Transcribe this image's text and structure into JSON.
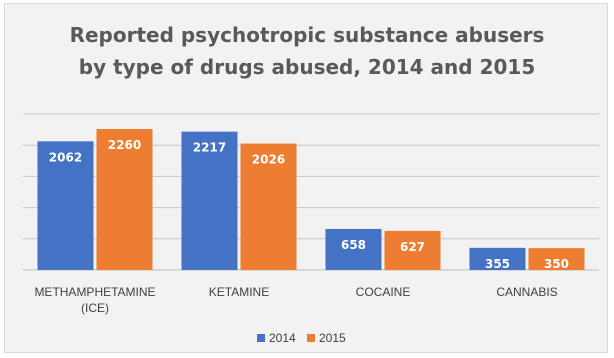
{
  "chart_data": {
    "type": "bar",
    "title_lines": [
      "Reported psychotropic substance abusers",
      "by type of drugs abused, 2014 and 2015"
    ],
    "categories": [
      [
        "METHAMPHETAMINE",
        "(ICE)"
      ],
      [
        "KETAMINE"
      ],
      [
        "COCAINE"
      ],
      [
        "CANNABIS"
      ]
    ],
    "series": [
      {
        "name": "2014",
        "values": [
          2062,
          2217,
          658,
          355
        ],
        "color": "#4472c4"
      },
      {
        "name": "2015",
        "values": [
          2260,
          2026,
          627,
          350
        ],
        "color": "#ed7d31"
      }
    ],
    "xlabel": "",
    "ylabel": "",
    "ylim": [
      0,
      2500
    ],
    "grid": true,
    "legend_position": "bottom",
    "background_color": "#f2f2f2"
  }
}
